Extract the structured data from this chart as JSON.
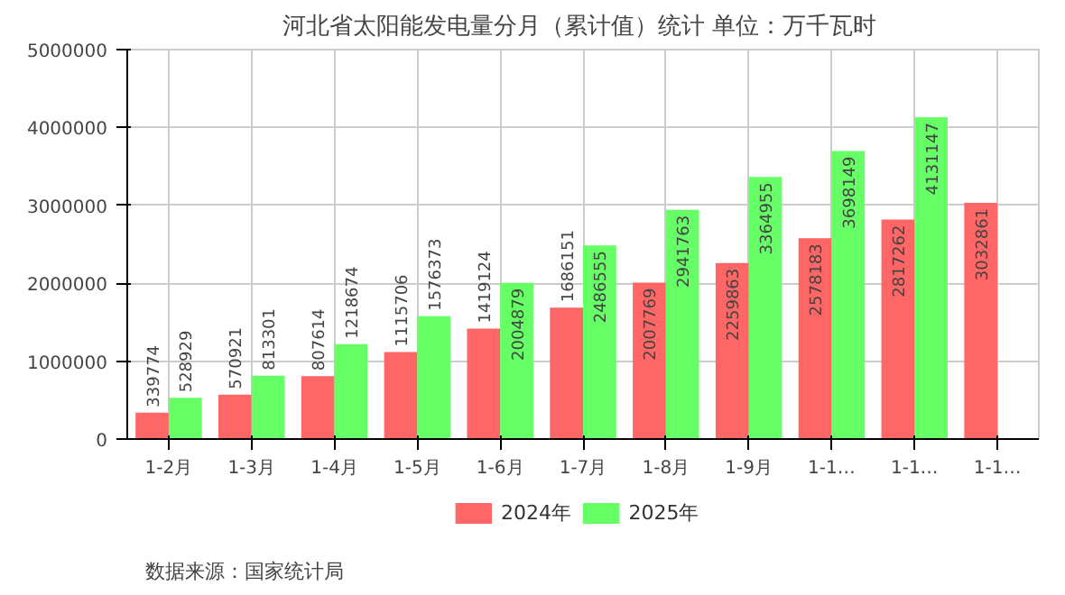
{
  "chart_data": {
    "type": "bar",
    "title": "河北省太阳能发电量分月（累计值）统计  单位：万千瓦时",
    "categories": [
      "1-2月",
      "1-3月",
      "1-4月",
      "1-5月",
      "1-6月",
      "1-7月",
      "1-8月",
      "1-9月",
      "1-1…",
      "1-1…",
      "1-1…"
    ],
    "series": [
      {
        "name": "2024年",
        "color": "#ff6666",
        "values": [
          339774,
          570921,
          807614,
          1115706,
          1419124,
          1686151,
          2007769,
          2259863,
          2578183,
          2817262,
          3032861
        ]
      },
      {
        "name": "2025年",
        "color": "#66ff66",
        "values": [
          528929,
          813301,
          1218674,
          1576373,
          2004879,
          2486555,
          2941763,
          3364955,
          3698149,
          4131147,
          null
        ]
      }
    ],
    "ylim": [
      0,
      5000000
    ],
    "yticks": [
      0,
      1000000,
      2000000,
      3000000,
      4000000,
      5000000
    ],
    "grid": true,
    "legend": "bottom",
    "data_labels": true,
    "annotations": [
      "数据来源：国家统计局"
    ]
  }
}
